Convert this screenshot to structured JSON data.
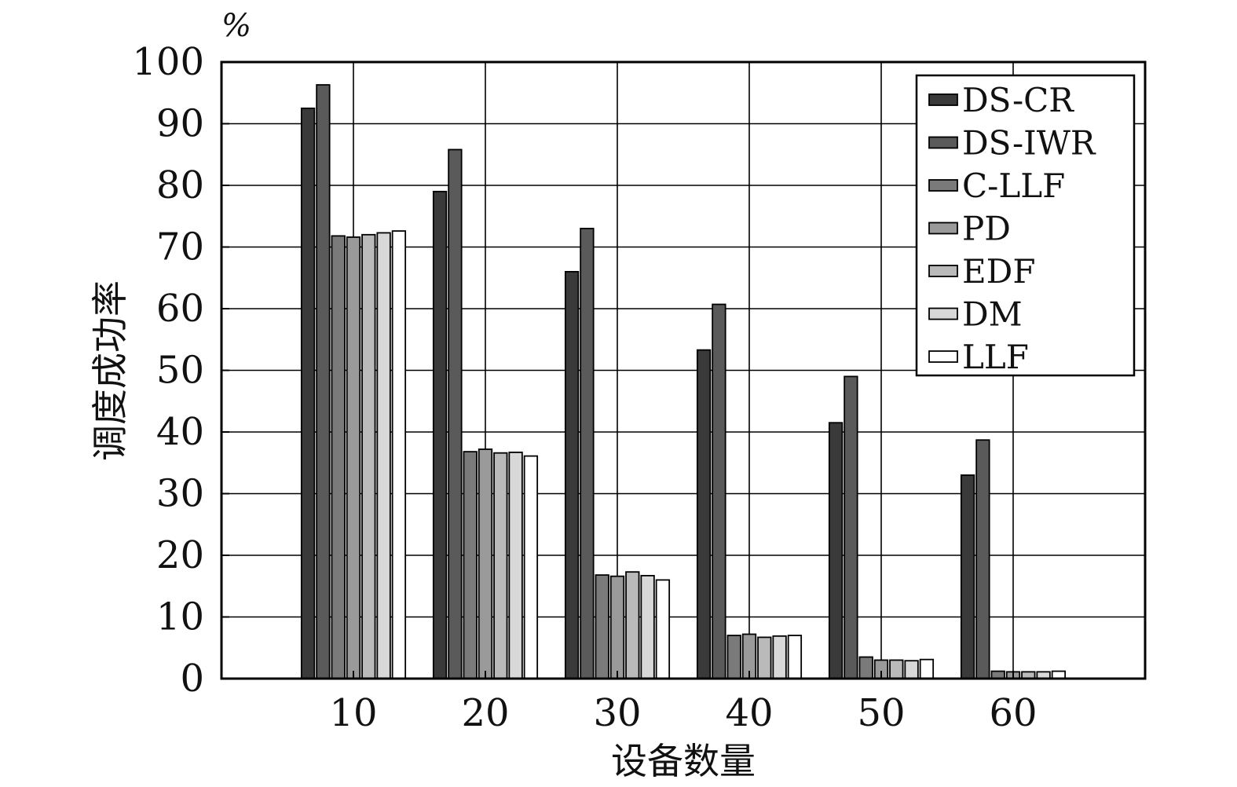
{
  "chart_data": {
    "type": "bar",
    "title": "",
    "unit": "%",
    "xlabel": "设备数量",
    "ylabel": "调度成功率",
    "categories": [
      "10",
      "20",
      "30",
      "40",
      "50",
      "60"
    ],
    "xlim": [
      0,
      70
    ],
    "ylim": [
      0,
      100
    ],
    "yticks": [
      "0",
      "10",
      "20",
      "30",
      "40",
      "50",
      "60",
      "70",
      "80",
      "90",
      "100"
    ],
    "grid": true,
    "legend_position": "top-right",
    "series": [
      {
        "name": "DS-CR",
        "color": "#3a3a3a",
        "values": [
          92.5,
          79.0,
          66.0,
          53.3,
          41.5,
          33.0
        ]
      },
      {
        "name": "DS-IWR",
        "color": "#5a5a5a",
        "values": [
          96.3,
          85.8,
          73.0,
          60.7,
          49.0,
          38.7
        ]
      },
      {
        "name": "C-LLF",
        "color": "#7a7a7a",
        "values": [
          71.8,
          36.8,
          16.8,
          7.0,
          3.5,
          1.2
        ]
      },
      {
        "name": "PD",
        "color": "#9a9a9a",
        "values": [
          71.6,
          37.2,
          16.6,
          7.2,
          3.0,
          1.1
        ]
      },
      {
        "name": "EDF",
        "color": "#bababa",
        "values": [
          72.0,
          36.6,
          17.3,
          6.7,
          3.0,
          1.1
        ]
      },
      {
        "name": "DM",
        "color": "#d8d8d8",
        "values": [
          72.3,
          36.7,
          16.7,
          6.9,
          2.9,
          1.1
        ]
      },
      {
        "name": "LLF",
        "color": "#ffffff",
        "values": [
          72.6,
          36.1,
          16.0,
          7.0,
          3.1,
          1.2
        ]
      }
    ]
  }
}
